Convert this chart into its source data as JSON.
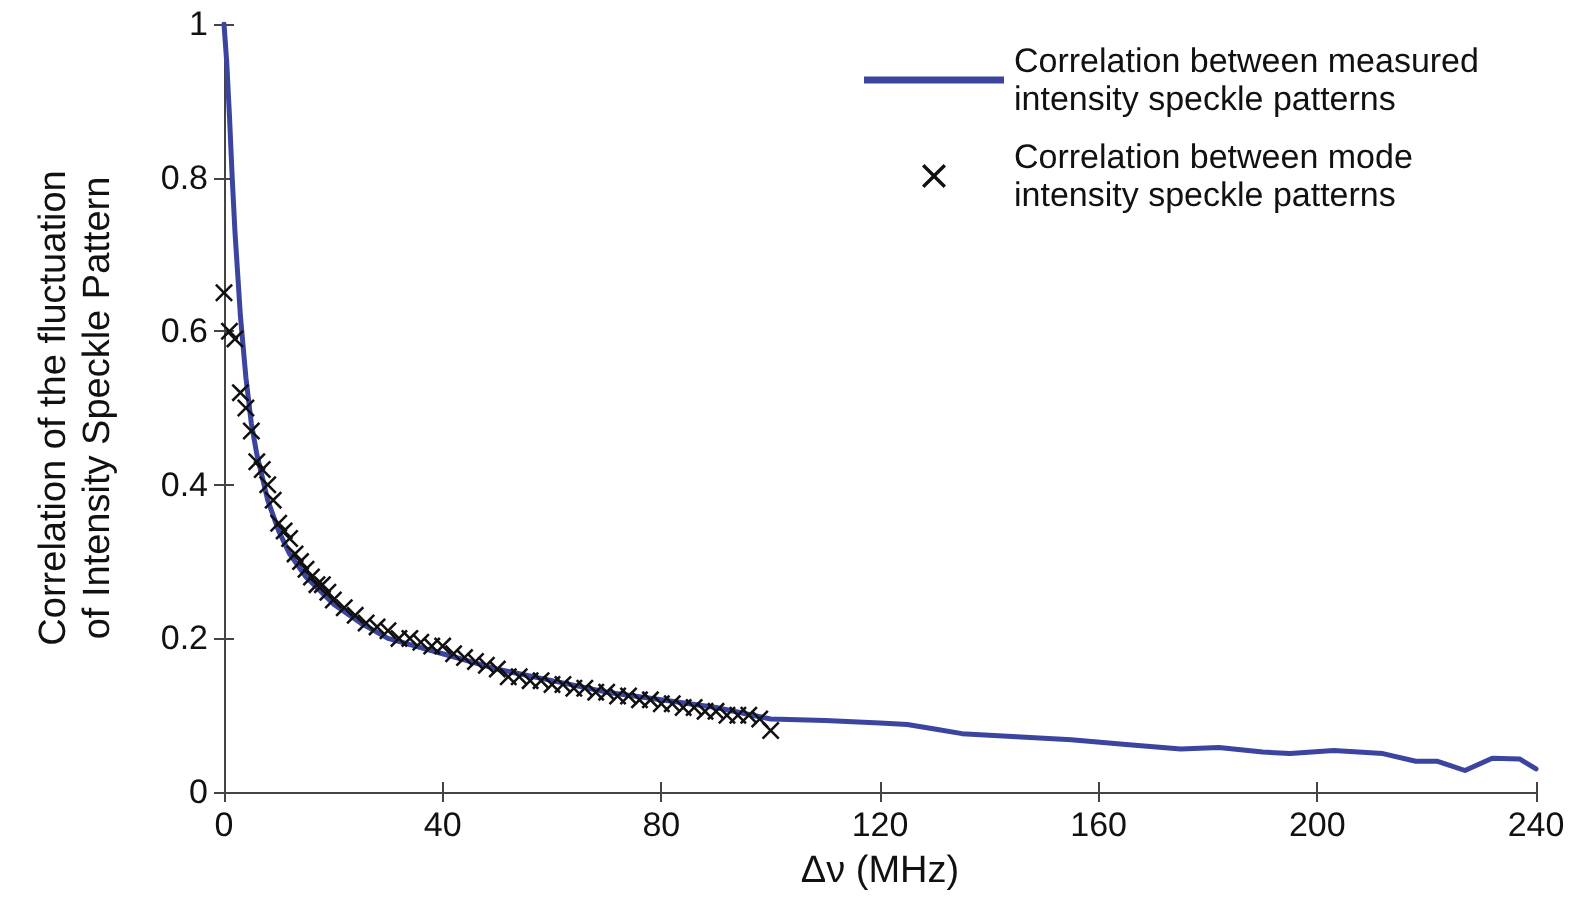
{
  "chart_data": {
    "type": "line",
    "xlabel": "Δν (MHz)",
    "ylabel": "Correlation of the fluctuation of Intensity Speckle Pattern",
    "xlim": [
      0,
      240
    ],
    "xticks": [
      0,
      40,
      80,
      120,
      160,
      200,
      240
    ],
    "ylim": [
      0,
      1
    ],
    "yticks": [
      0,
      0.2,
      0.4,
      0.6,
      0.8,
      1
    ],
    "grid": false,
    "legend": "top right",
    "series": [
      {
        "name": "Correlation between measured intensity speckle patterns",
        "color": "#3b45a0",
        "marker": "none",
        "line_style": "solid",
        "x": [
          0,
          0.5,
          1,
          1.5,
          2,
          3,
          4,
          5,
          6,
          8,
          10,
          12,
          15,
          20,
          25,
          30,
          40,
          50,
          60,
          70,
          80,
          90,
          100,
          110,
          120,
          125,
          130,
          135,
          145,
          155,
          165,
          175,
          182,
          190,
          195,
          203,
          212,
          218,
          222,
          227,
          232,
          237,
          240
        ],
        "values": [
          1,
          0.95,
          0.88,
          0.8,
          0.73,
          0.62,
          0.54,
          0.48,
          0.44,
          0.38,
          0.34,
          0.31,
          0.28,
          0.245,
          0.22,
          0.2,
          0.18,
          0.16,
          0.145,
          0.13,
          0.12,
          0.11,
          0.095,
          0.093,
          0.09,
          0.088,
          0.082,
          0.076,
          0.072,
          0.068,
          0.062,
          0.056,
          0.058,
          0.052,
          0.05,
          0.054,
          0.05,
          0.04,
          0.04,
          0.028,
          0.044,
          0.043,
          0.03
        ]
      },
      {
        "name": "Correlation between mode intensity speckle patterns",
        "type": "scatter",
        "color": "#111111",
        "marker": "cross",
        "x": [
          0,
          1,
          2,
          3,
          4,
          5,
          6,
          7,
          8,
          9,
          10,
          11,
          12,
          13,
          14,
          15,
          16,
          17,
          18,
          19,
          20,
          22,
          24,
          26,
          28,
          30,
          32,
          34,
          36,
          38,
          40,
          42,
          44,
          46,
          48,
          50,
          52,
          54,
          56,
          58,
          60,
          62,
          64,
          66,
          68,
          70,
          72,
          74,
          76,
          78,
          80,
          82,
          84,
          86,
          88,
          90,
          92,
          94,
          96,
          98,
          100
        ],
        "values": [
          0.65,
          0.6,
          0.59,
          0.52,
          0.5,
          0.47,
          0.43,
          0.42,
          0.4,
          0.38,
          0.35,
          0.34,
          0.33,
          0.31,
          0.3,
          0.29,
          0.28,
          0.27,
          0.27,
          0.26,
          0.25,
          0.24,
          0.23,
          0.22,
          0.215,
          0.21,
          0.2,
          0.2,
          0.195,
          0.19,
          0.19,
          0.18,
          0.175,
          0.17,
          0.165,
          0.16,
          0.15,
          0.15,
          0.145,
          0.145,
          0.14,
          0.14,
          0.135,
          0.135,
          0.13,
          0.13,
          0.125,
          0.125,
          0.12,
          0.12,
          0.115,
          0.115,
          0.11,
          0.11,
          0.105,
          0.105,
          0.1,
          0.1,
          0.1,
          0.095,
          0.08
        ]
      }
    ]
  }
}
